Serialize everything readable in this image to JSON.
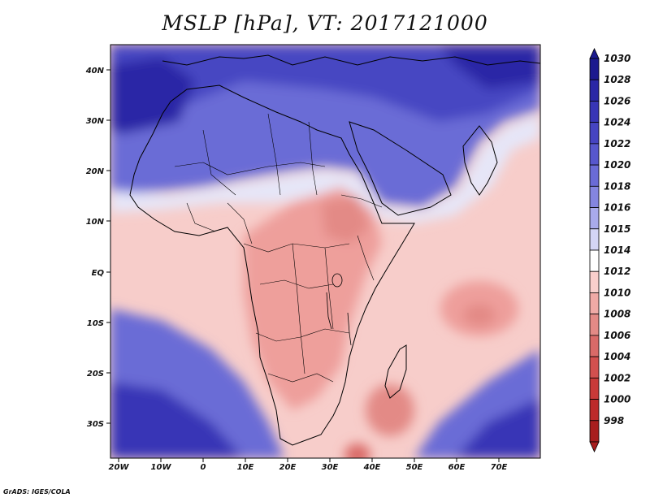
{
  "title": "MSLP [hPa], VT: 2017121000",
  "credit": "GrADS: IGES/COLA",
  "axes": {
    "x_ticks": [
      "20W",
      "10W",
      "0",
      "10E",
      "20E",
      "30E",
      "40E",
      "50E",
      "60E",
      "70E"
    ],
    "y_ticks": [
      "40N",
      "30N",
      "20N",
      "10N",
      "EQ",
      "10S",
      "20S",
      "30S"
    ]
  },
  "colorbar": {
    "levels": [
      "1030",
      "1028",
      "1026",
      "1024",
      "1022",
      "1020",
      "1018",
      "1016",
      "1015",
      "1014",
      "1012",
      "1010",
      "1008",
      "1006",
      "1004",
      "1002",
      "1000",
      "998"
    ],
    "colors": [
      "#1c1a8f",
      "#2a27a6",
      "#3835b6",
      "#4644c2",
      "#5757cd",
      "#6a6bd6",
      "#8485e0",
      "#a9aaeb",
      "#d4d5f6",
      "#ffffff",
      "#f9cfcc",
      "#f0aaa6",
      "#e38a86",
      "#d96a68",
      "#d3504f",
      "#c93a39",
      "#bd2a2a",
      "#a81e1e"
    ]
  },
  "pressure_centers": [
    {
      "label": "high",
      "value": 1030
    },
    {
      "label": "low",
      "value": 1008
    }
  ],
  "colors": {
    "ocean_default": "#f6c7c4",
    "coast_line": "#000000"
  }
}
